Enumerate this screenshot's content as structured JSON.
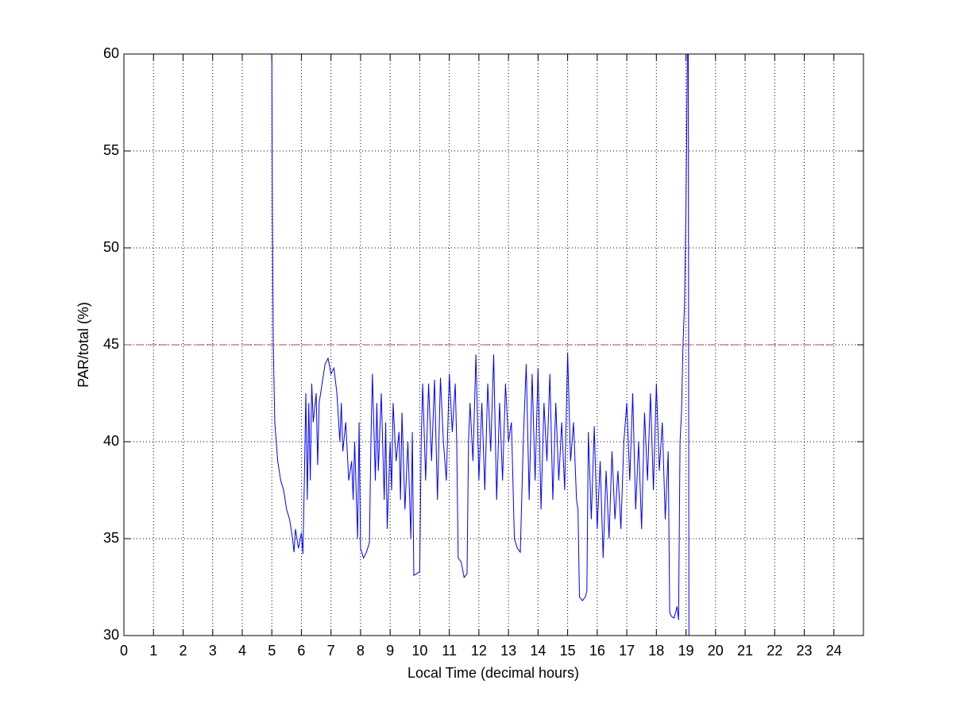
{
  "chart_data": {
    "type": "line",
    "xlabel": "Local Time (decimal hours)",
    "ylabel": "PAR/total (%)",
    "xlim": [
      0,
      25
    ],
    "xticks": [
      0,
      1,
      2,
      3,
      4,
      5,
      6,
      7,
      8,
      9,
      10,
      11,
      12,
      13,
      14,
      15,
      16,
      17,
      18,
      19,
      20,
      21,
      22,
      23,
      24
    ],
    "ylim": [
      30,
      60
    ],
    "yticks": [
      30,
      35,
      40,
      45,
      50,
      55,
      60
    ],
    "grid": true,
    "series": [
      {
        "color": "#0000ff",
        "style": "solid",
        "x": [
          5.0,
          5.02,
          5.05,
          5.1,
          5.2,
          5.3,
          5.4,
          5.5,
          5.6,
          5.7,
          5.75,
          5.8,
          5.9,
          6.0,
          6.05,
          6.1,
          6.15,
          6.2,
          6.25,
          6.3,
          6.35,
          6.4,
          6.5,
          6.55,
          6.6,
          6.7,
          6.8,
          6.9,
          7.0,
          7.1,
          7.2,
          7.3,
          7.35,
          7.4,
          7.5,
          7.6,
          7.7,
          7.75,
          7.8,
          7.9,
          7.95,
          8.0,
          8.1,
          8.2,
          8.3,
          8.35,
          8.4,
          8.5,
          8.55,
          8.6,
          8.7,
          8.8,
          8.85,
          8.9,
          9.0,
          9.05,
          9.1,
          9.2,
          9.3,
          9.35,
          9.4,
          9.5,
          9.6,
          9.7,
          9.75,
          9.8,
          9.9,
          10.0,
          10.05,
          10.1,
          10.2,
          10.3,
          10.4,
          10.5,
          10.6,
          10.7,
          10.8,
          10.9,
          11.0,
          11.1,
          11.2,
          11.25,
          11.3,
          11.4,
          11.5,
          11.6,
          11.65,
          11.7,
          11.8,
          11.9,
          12.0,
          12.1,
          12.2,
          12.3,
          12.4,
          12.5,
          12.6,
          12.7,
          12.8,
          12.9,
          13.0,
          13.1,
          13.2,
          13.3,
          13.4,
          13.5,
          13.6,
          13.7,
          13.8,
          13.9,
          14.0,
          14.1,
          14.2,
          14.3,
          14.4,
          14.5,
          14.6,
          14.7,
          14.8,
          14.9,
          15.0,
          15.1,
          15.2,
          15.3,
          15.35,
          15.4,
          15.5,
          15.6,
          15.65,
          15.7,
          15.8,
          15.9,
          16.0,
          16.1,
          16.2,
          16.3,
          16.4,
          16.5,
          16.6,
          16.7,
          16.8,
          16.9,
          17.0,
          17.1,
          17.2,
          17.3,
          17.4,
          17.5,
          17.6,
          17.7,
          17.8,
          17.9,
          18.0,
          18.1,
          18.2,
          18.3,
          18.4,
          18.45,
          18.5,
          18.6,
          18.7,
          18.75,
          18.8,
          18.85,
          18.9,
          18.95,
          19.0,
          19.05,
          19.08,
          19.1
        ],
        "values": [
          60,
          52,
          45,
          41,
          39,
          38,
          37.5,
          36.5,
          36,
          35,
          34.3,
          35.5,
          34.5,
          35.3,
          34.2,
          38,
          42.5,
          37,
          42,
          38,
          43,
          41,
          42.5,
          38.8,
          42,
          43,
          44,
          44.3,
          43.5,
          43.8,
          42.5,
          40,
          42,
          39.5,
          41,
          38,
          39,
          37,
          40,
          35,
          41,
          34.5,
          34,
          34.3,
          34.8,
          40,
          43.5,
          38,
          42,
          38.5,
          42.5,
          37,
          41,
          35.5,
          40,
          37.5,
          42,
          39,
          40.5,
          37,
          41.5,
          36.5,
          40,
          35,
          40.5,
          33.1,
          33.2,
          33.3,
          40,
          43,
          38,
          43,
          39,
          43.2,
          37,
          43.3,
          40,
          38,
          43.5,
          40.5,
          43,
          40,
          34,
          33.8,
          33,
          33.2,
          40,
          42,
          39,
          44.5,
          38,
          42,
          37.5,
          43,
          39.5,
          44.5,
          37,
          42,
          38,
          43,
          40,
          41,
          35,
          34.5,
          34.3,
          40,
          44,
          37,
          43.5,
          38,
          43.8,
          36.5,
          42,
          39,
          43.5,
          37,
          42,
          38,
          41,
          37.5,
          44.6,
          39,
          41,
          37,
          36.5,
          32,
          31.8,
          32,
          32.3,
          40.5,
          36,
          40.8,
          35.5,
          39,
          34,
          38.5,
          35,
          39.5,
          36,
          38.5,
          35.5,
          40,
          42,
          38,
          42.5,
          36.5,
          40,
          35.5,
          41.5,
          38,
          42.5,
          37.5,
          43,
          38.5,
          41,
          36,
          39.5,
          31.2,
          31,
          30.9,
          31.5,
          30.8,
          40,
          41.5,
          45,
          47,
          52,
          60,
          60,
          30
        ]
      },
      {
        "color": "#bf3f3f",
        "style": "dashed",
        "x": [
          0,
          24
        ],
        "values": [
          45,
          45
        ]
      }
    ]
  }
}
